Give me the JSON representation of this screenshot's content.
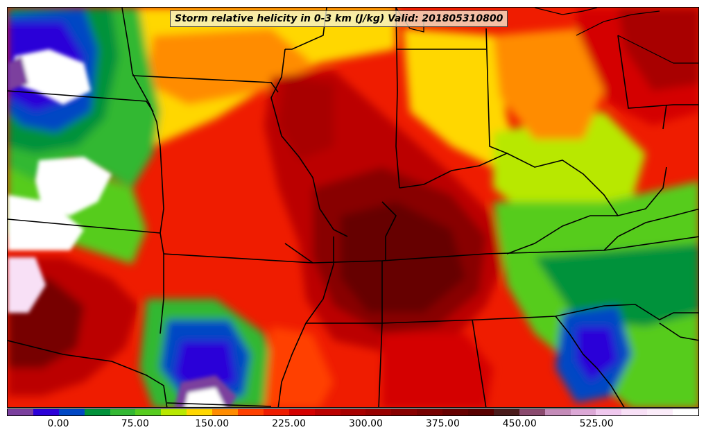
{
  "title": "Storm relative helicity in 0-3 km (J/kg) Valid: 201805310800",
  "colorbar": {
    "colors": [
      "#7b3f9e",
      "#2b00d8",
      "#0047c4",
      "#00923a",
      "#33b833",
      "#57cc1f",
      "#b8e800",
      "#ffd700",
      "#ff8c00",
      "#ff4000",
      "#ef1c00",
      "#d40000",
      "#bb0000",
      "#a80000",
      "#980000",
      "#880000",
      "#770000",
      "#660000",
      "#580000",
      "#4a1b1b",
      "#8a4a6e",
      "#c48bb8",
      "#dca8d6",
      "#f0c8ee",
      "#f8e0f6",
      "#fbecf9",
      "#ffffff"
    ],
    "labels": [
      "0.00",
      "75.00",
      "150.00",
      "225.00",
      "300.00",
      "375.00",
      "450.00",
      "525.00"
    ]
  }
}
